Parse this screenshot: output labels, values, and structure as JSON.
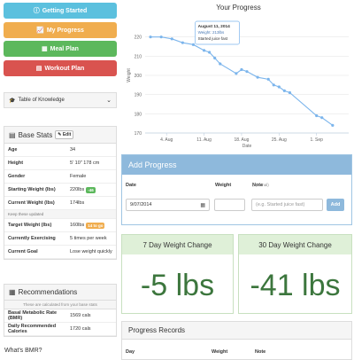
{
  "nav": {
    "getting_started": {
      "label": "Getting Started",
      "color": "#5bc0de"
    },
    "my_progress": {
      "label": "My Progress",
      "color": "#f0ad4e"
    },
    "meal_plan": {
      "label": "Meal Plan",
      "color": "#5cb85c"
    },
    "workout_plan": {
      "label": "Workout Plan",
      "color": "#d9534f"
    }
  },
  "table_of_knowledge": {
    "label": "Table of Knowledge"
  },
  "base_stats": {
    "title": "Base Stats",
    "edit_label": "Edit",
    "rows": [
      {
        "key": "Age",
        "value": "34"
      },
      {
        "key": "Height",
        "value": "5' 10\" 178 cm"
      },
      {
        "key": "Gender",
        "value": "Female"
      },
      {
        "key": "Starting Weight (lbs)",
        "value": "220lbs",
        "badge": "-46",
        "badge_color": "#5cb85c"
      },
      {
        "key": "Current Weight (lbs)",
        "value": "174lbs"
      }
    ],
    "keep_updated": "Keep these updated",
    "rows2": [
      {
        "key": "Target Weight (lbs)",
        "value": "160lbs",
        "badge": "14 to go",
        "badge_color": "#f0ad4e"
      },
      {
        "key": "Currently Exercising",
        "value": "5 times per week"
      },
      {
        "key": "Current Goal",
        "value": "Lose weight quickly"
      }
    ]
  },
  "recommendations": {
    "title": "Recommendations",
    "note": "These are calculated from your base stats",
    "rows": [
      {
        "key": "Basal Metabolic Rate (BMR)",
        "value": "1569 cals"
      },
      {
        "key": "Daily Recommended Calories",
        "value": "1720 cals"
      }
    ]
  },
  "what_bmr": "What's BMR?",
  "chart_data": {
    "type": "line",
    "title": "Your Progress",
    "xlabel": "Date",
    "ylabel": "Weight",
    "x_ticks": [
      "4. Aug",
      "11. Aug",
      "18. Aug",
      "25. Aug",
      "1. Sep"
    ],
    "x_range": [
      "2014-07-31",
      "2014-09-07"
    ],
    "ylim": [
      170,
      230
    ],
    "y_ticks": [
      170,
      180,
      190,
      200,
      210,
      220
    ],
    "x": [
      "2014-08-01",
      "2014-08-03",
      "2014-08-05",
      "2014-08-07",
      "2014-08-09",
      "2014-08-11",
      "2014-08-12",
      "2014-08-13",
      "2014-08-14",
      "2014-08-17",
      "2014-08-18",
      "2014-08-19",
      "2014-08-21",
      "2014-08-23",
      "2014-08-24",
      "2014-08-25",
      "2014-08-26",
      "2014-08-27",
      "2014-09-01",
      "2014-09-02",
      "2014-09-04"
    ],
    "y": [
      220,
      220,
      219,
      217,
      216,
      213,
      212,
      209,
      206,
      201,
      203,
      202,
      199,
      198,
      195,
      194,
      192,
      191,
      179,
      178,
      174
    ],
    "tooltip": {
      "date": "August 11, 2014",
      "weight": "Weight: 213lbs",
      "note": "Started juice fast"
    },
    "color": "#7cb5ec"
  },
  "add_progress": {
    "title": "Add Progress",
    "date_label": "Date",
    "weight_label": "Weight",
    "note_label": "Note",
    "note_optional": "(optional)",
    "date_value": "9/07/2014",
    "weight_value": "",
    "note_placeholder": "(e.g. Started juice fast)",
    "add_label": "Add"
  },
  "change7": {
    "title": "7 Day Weight Change",
    "value": "-5 lbs"
  },
  "change30": {
    "title": "30 Day Weight Change",
    "value": "-41 lbs"
  },
  "records": {
    "title": "Progress Records",
    "cols": [
      "Day",
      "Weight",
      "Note"
    ]
  }
}
